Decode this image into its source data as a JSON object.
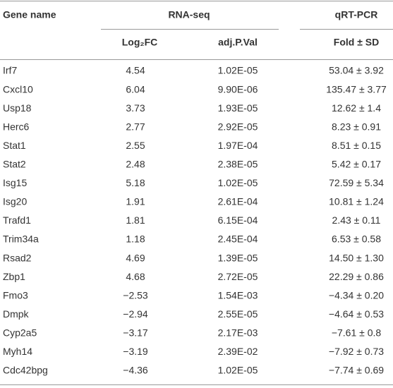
{
  "table": {
    "header": {
      "gene": "Gene name",
      "group1": "RNA-seq",
      "group2": "qRT-PCR",
      "col1": "Log₂FC",
      "col2": "adj.P.Val",
      "col3": "Fold ± SD"
    },
    "rows": [
      [
        "Irf7",
        "4.54",
        "1.02E-05",
        "53.04 ± 3.92"
      ],
      [
        "Cxcl10",
        "6.04",
        "9.90E-06",
        "135.47 ± 3.77"
      ],
      [
        "Usp18",
        "3.73",
        "1.93E-05",
        "12.62 ± 1.4"
      ],
      [
        "Herc6",
        "2.77",
        "2.92E-05",
        "8.23 ± 0.91"
      ],
      [
        "Stat1",
        "2.55",
        "1.97E-04",
        "8.51 ± 0.15"
      ],
      [
        "Stat2",
        "2.48",
        "2.38E-05",
        "5.42 ± 0.17"
      ],
      [
        "Isg15",
        "5.18",
        "1.02E-05",
        "72.59 ± 5.34"
      ],
      [
        "Isg20",
        "1.91",
        "2.61E-04",
        "10.81 ± 1.24"
      ],
      [
        "Trafd1",
        "1.81",
        "6.15E-04",
        "2.43 ± 0.11"
      ],
      [
        "Trim34a",
        "1.18",
        "2.45E-04",
        "6.53 ± 0.58"
      ],
      [
        "Rsad2",
        "4.69",
        "1.39E-05",
        "14.50 ± 1.30"
      ],
      [
        "Zbp1",
        "4.68",
        "2.72E-05",
        "22.29 ± 0.86"
      ],
      [
        "Fmo3",
        "−2.53",
        "1.54E-03",
        "−4.34 ± 0.20"
      ],
      [
        "Dmpk",
        "−2.94",
        "2.55E-05",
        "−4.64 ± 0.53"
      ],
      [
        "Cyp2a5",
        "−3.17",
        "2.17E-03",
        "−7.61 ± 0.8"
      ],
      [
        "Myh14",
        "−3.19",
        "2.39E-02",
        "−7.92 ± 0.73"
      ],
      [
        "Cdc42bpg",
        "−4.36",
        "1.02E-05",
        "−7.74 ± 0.69"
      ]
    ]
  }
}
